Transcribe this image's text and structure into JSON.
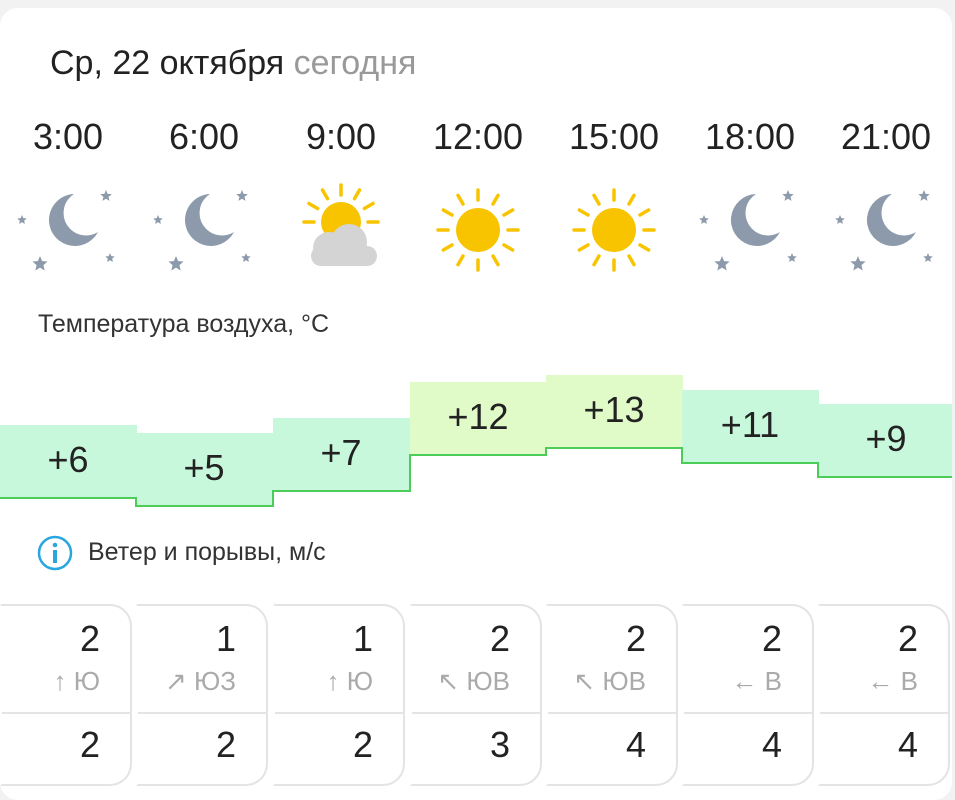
{
  "header": {
    "date": "Ср, 22 октября",
    "today": "сегодня"
  },
  "hours": [
    {
      "time": "3:00",
      "icon": "night-stars-icon",
      "temp": "+6",
      "wind": "2",
      "dir_arrow": "↑",
      "dir": "Ю",
      "gust": "2"
    },
    {
      "time": "6:00",
      "icon": "night-stars-icon",
      "temp": "+5",
      "wind": "1",
      "dir_arrow": "↗",
      "dir": "ЮЗ",
      "gust": "2"
    },
    {
      "time": "9:00",
      "icon": "sun-cloud-icon",
      "temp": "+7",
      "wind": "1",
      "dir_arrow": "↑",
      "dir": "Ю",
      "gust": "2"
    },
    {
      "time": "12:00",
      "icon": "sun-icon",
      "temp": "+12",
      "wind": "2",
      "dir_arrow": "↖",
      "dir": "ЮВ",
      "gust": "3"
    },
    {
      "time": "15:00",
      "icon": "sun-icon",
      "temp": "+13",
      "wind": "2",
      "dir_arrow": "↖",
      "dir": "ЮВ",
      "gust": "4"
    },
    {
      "time": "18:00",
      "icon": "night-stars-icon",
      "temp": "+11",
      "wind": "2",
      "dir_arrow": "←",
      "dir": "В",
      "gust": "4"
    },
    {
      "time": "21:00",
      "icon": "night-stars-icon",
      "temp": "+9",
      "wind": "2",
      "dir_arrow": "←",
      "dir": "В",
      "gust": "4"
    }
  ],
  "temperature_label": "Температура воздуха, °C",
  "wind_label": "Ветер и порывы, м/с",
  "colors": {
    "cool_fill": "#c8f8dc",
    "warm_fill": "#e0fac8",
    "line": "#4ccd5a",
    "info": "#2aa6de",
    "sun": "#f8c400",
    "moon": "#8c9aab"
  }
}
